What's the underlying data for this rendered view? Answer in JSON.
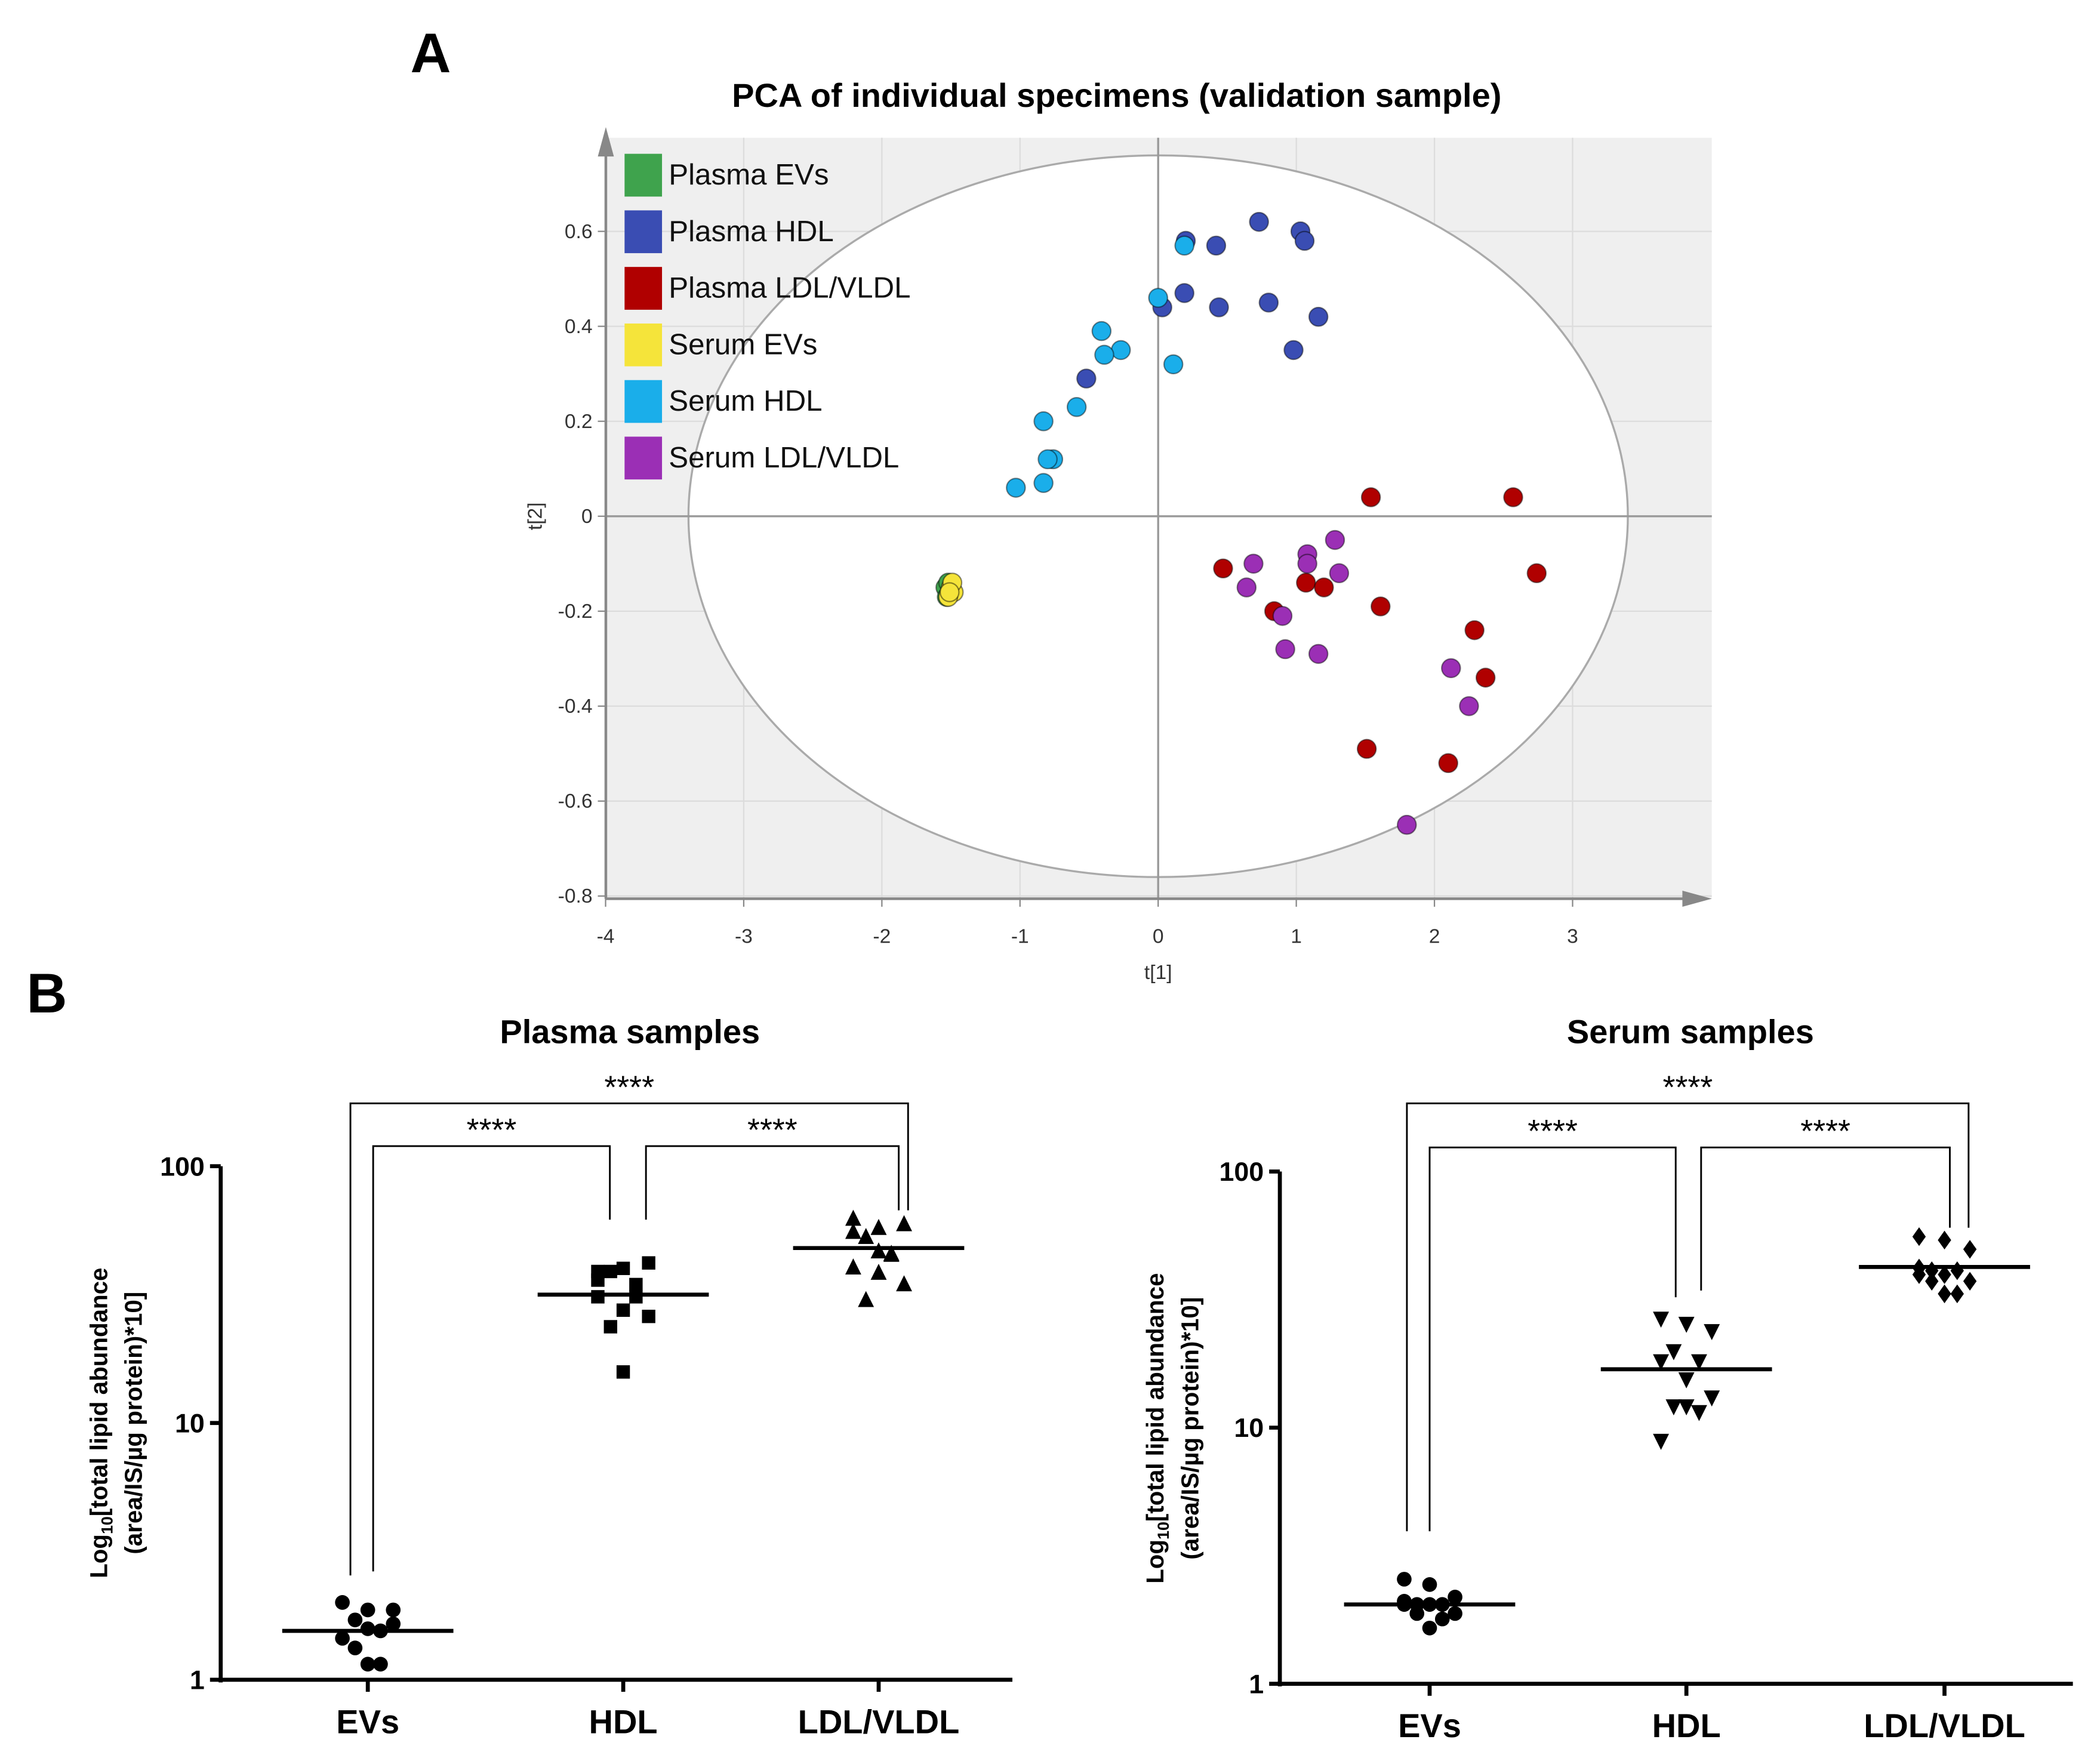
{
  "panel_labels": {
    "a": "A",
    "b": "B"
  },
  "chart_data": [
    {
      "type": "scatter",
      "title": "PCA of individual  specimens  (validation sample)",
      "xlabel": "t[1]",
      "ylabel": "t[2]",
      "xlim": [
        -4,
        4
      ],
      "ylim": [
        -0.8,
        0.8
      ],
      "xticks": [
        -4,
        -3,
        -2,
        -1,
        0,
        1,
        2,
        3
      ],
      "yticks": [
        -0.8,
        -0.6,
        -0.4,
        -0.2,
        0,
        0.2,
        0.4,
        0.6
      ],
      "grid": true,
      "legend_position": "top-left",
      "ellipse": {
        "rx": 3.4,
        "ry": 0.76
      },
      "series": [
        {
          "name": "Plasma EVs",
          "color": "#3fa34d",
          "points": [
            [
              -1.54,
              -0.15
            ],
            [
              -1.52,
              -0.14
            ],
            [
              -1.5,
              -0.16
            ],
            [
              -1.53,
              -0.17
            ]
          ]
        },
        {
          "name": "Plasma HDL",
          "color": "#3a4db3",
          "points": [
            [
              0.73,
              0.62
            ],
            [
              1.03,
              0.6
            ],
            [
              1.06,
              0.58
            ],
            [
              0.2,
              0.58
            ],
            [
              0.42,
              0.57
            ],
            [
              0.19,
              0.47
            ],
            [
              0.03,
              0.44
            ],
            [
              0.44,
              0.44
            ],
            [
              0.8,
              0.45
            ],
            [
              1.16,
              0.42
            ],
            [
              0.98,
              0.35
            ],
            [
              -0.52,
              0.29
            ]
          ]
        },
        {
          "name": "Plasma LDL/VLDL",
          "color": "#b00000",
          "points": [
            [
              1.54,
              0.04
            ],
            [
              2.57,
              0.04
            ],
            [
              2.74,
              -0.12
            ],
            [
              0.47,
              -0.11
            ],
            [
              1.07,
              -0.14
            ],
            [
              1.2,
              -0.15
            ],
            [
              1.61,
              -0.19
            ],
            [
              0.84,
              -0.2
            ],
            [
              2.29,
              -0.24
            ],
            [
              2.37,
              -0.34
            ],
            [
              1.51,
              -0.49
            ],
            [
              2.1,
              -0.52
            ]
          ]
        },
        {
          "name": "Serum EVs",
          "color": "#f5e43a",
          "points": [
            [
              -1.5,
              -0.15
            ],
            [
              -1.48,
              -0.16
            ],
            [
              -1.52,
              -0.17
            ],
            [
              -1.49,
              -0.14
            ],
            [
              -1.51,
              -0.16
            ]
          ]
        },
        {
          "name": "Serum HDL",
          "color": "#1aaeea",
          "points": [
            [
              0.19,
              0.57
            ],
            [
              0.0,
              0.46
            ],
            [
              -0.41,
              0.39
            ],
            [
              -0.27,
              0.35
            ],
            [
              -0.39,
              0.34
            ],
            [
              0.11,
              0.32
            ],
            [
              -0.59,
              0.23
            ],
            [
              -0.83,
              0.2
            ],
            [
              -0.76,
              0.12
            ],
            [
              -0.8,
              0.12
            ],
            [
              -0.83,
              0.07
            ],
            [
              -1.03,
              0.06
            ]
          ]
        },
        {
          "name": "Serum LDL/VLDL",
          "color": "#9b2fb5",
          "points": [
            [
              1.28,
              -0.05
            ],
            [
              1.08,
              -0.08
            ],
            [
              1.08,
              -0.1
            ],
            [
              0.69,
              -0.1
            ],
            [
              1.31,
              -0.12
            ],
            [
              0.64,
              -0.15
            ],
            [
              0.9,
              -0.21
            ],
            [
              0.92,
              -0.28
            ],
            [
              1.16,
              -0.29
            ],
            [
              2.12,
              -0.32
            ],
            [
              2.25,
              -0.4
            ],
            [
              1.8,
              -0.65
            ]
          ]
        }
      ]
    },
    {
      "type": "scatter",
      "title": "Plasma  samples",
      "ylabel_prefix": "Log",
      "ylabel_sub": "10",
      "ylabel_rest": "[total lipid abundance",
      "ylabel_line2": "(area/IS/µg protein)*10]",
      "yscale": "log",
      "ylim": [
        1,
        100
      ],
      "yticks": [
        1,
        10,
        100
      ],
      "categories": [
        "EVs",
        "HDL",
        "LDL/VLDL"
      ],
      "markers": [
        "circle",
        "square",
        "triangle"
      ],
      "values": [
        [
          2.0,
          1.87,
          1.87,
          1.71,
          1.55,
          1.45,
          1.58,
          1.65,
          1.33,
          1.15,
          1.15
        ],
        [
          38.9,
          40,
          42,
          38.9,
          34.6,
          31,
          27.5,
          26,
          23.7,
          31,
          15.8,
          36
        ],
        [
          63,
          58,
          60,
          53.5,
          45.6,
          40.7,
          38.8,
          35,
          30.4,
          46,
          47,
          56
        ]
      ],
      "medians": [
        1.55,
        31.6,
        48
      ],
      "significance": [
        {
          "from": 0,
          "to": 2,
          "label": "****"
        },
        {
          "from": 0,
          "to": 1,
          "label": "****"
        },
        {
          "from": 1,
          "to": 2,
          "label": "****"
        }
      ]
    },
    {
      "type": "scatter",
      "title": "Serum  samples",
      "ylabel_prefix": "Log",
      "ylabel_sub": "10",
      "ylabel_rest": "[total lipid abundance",
      "ylabel_line2": "(area/IS/µg protein)*10]",
      "yscale": "log",
      "ylim": [
        1,
        100
      ],
      "yticks": [
        1,
        10,
        100
      ],
      "categories": [
        "EVs",
        "HDL",
        "LDL/VLDL"
      ],
      "markers": [
        "circle",
        "triangle-down",
        "diamond"
      ],
      "values": [
        [
          2.56,
          2.44,
          2.18,
          2.04,
          2.04,
          2.04,
          2.04,
          1.88,
          1.88,
          1.79,
          1.65,
          2.1
        ],
        [
          26.4,
          25.2,
          23.6,
          19.7,
          18,
          18,
          15.3,
          13,
          12,
          11.4,
          12,
          8.8
        ],
        [
          55.7,
          54,
          49.7,
          41,
          41,
          39.6,
          39.6,
          37.3,
          37.3,
          33.3,
          33.3,
          42
        ]
      ],
      "medians": [
        2.04,
        16.9,
        42.4
      ],
      "significance": [
        {
          "from": 0,
          "to": 2,
          "label": "****"
        },
        {
          "from": 0,
          "to": 1,
          "label": "****"
        },
        {
          "from": 1,
          "to": 2,
          "label": "****"
        }
      ]
    }
  ]
}
